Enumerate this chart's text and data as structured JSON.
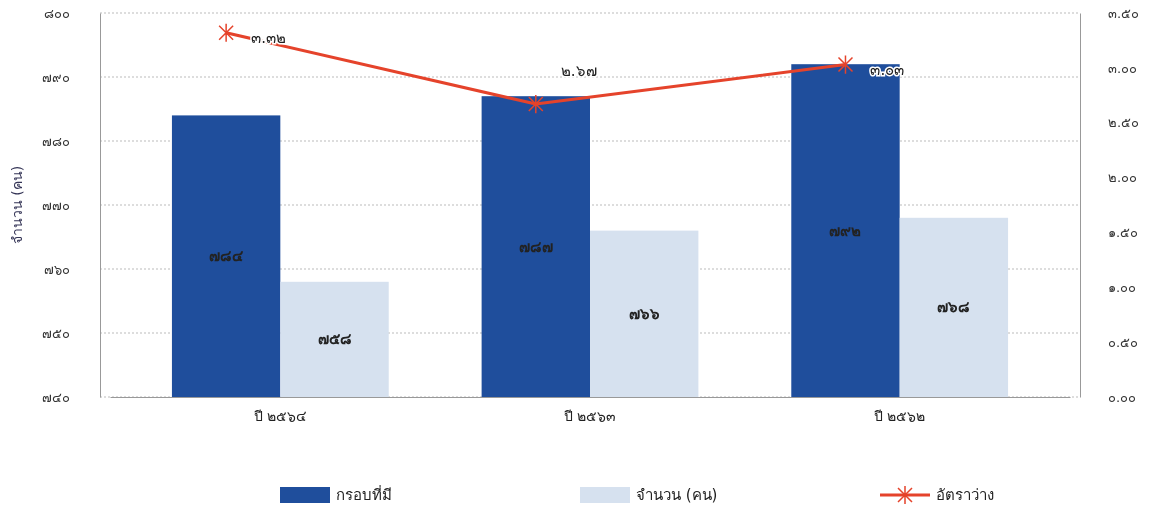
{
  "chart_data": {
    "type": "bar",
    "ylabel": "จำนวน (คน)",
    "categories": [
      "ปี ๒๕๖๔",
      "ปี ๒๕๖๓",
      "ปี ๒๕๖๒"
    ],
    "series": [
      {
        "name": "กรอบที่มี",
        "color": "#1f4e9c",
        "values": [
          784,
          787,
          792
        ],
        "value_labels": [
          "๗๘๔",
          "๗๘๗",
          "๗๙๒"
        ]
      },
      {
        "name": "จำนวน (คน)",
        "color": "#d6e1ef",
        "values": [
          758,
          766,
          768
        ],
        "value_labels": [
          "๗๕๘",
          "๗๖๖",
          "๗๖๘"
        ]
      },
      {
        "name": "อัตราว่าง",
        "type": "line",
        "axis": "y2",
        "color": "#e5432b",
        "marker": "cross",
        "values": [
          3.32,
          2.67,
          3.03
        ],
        "value_labels": [
          "๓.๓๒",
          "๒.๖๗",
          "๓.๐๓"
        ]
      }
    ],
    "ylim": [
      740,
      800
    ],
    "yticks": [
      {
        "value": 740,
        "label": "๗๔๐"
      },
      {
        "value": 750,
        "label": "๗๕๐"
      },
      {
        "value": 760,
        "label": "๗๖๐"
      },
      {
        "value": 770,
        "label": "๗๗๐"
      },
      {
        "value": 780,
        "label": "๗๘๐"
      },
      {
        "value": 790,
        "label": "๗๙๐"
      },
      {
        "value": 800,
        "label": "๘๐๐"
      }
    ],
    "y2lim": [
      0,
      3.5
    ],
    "y2ticks": [
      {
        "value": 0,
        "label": "๐.๐๐"
      },
      {
        "value": 0.5,
        "label": "๐.๕๐"
      },
      {
        "value": 1,
        "label": "๑.๐๐"
      },
      {
        "value": 1.5,
        "label": "๑.๕๐"
      },
      {
        "value": 2,
        "label": "๒.๐๐"
      },
      {
        "value": 2.5,
        "label": "๒.๕๐"
      },
      {
        "value": 3,
        "label": "๓.๐๐"
      },
      {
        "value": 3.5,
        "label": "๓.๕๐"
      }
    ],
    "grid": "y",
    "legend": "bottom"
  }
}
